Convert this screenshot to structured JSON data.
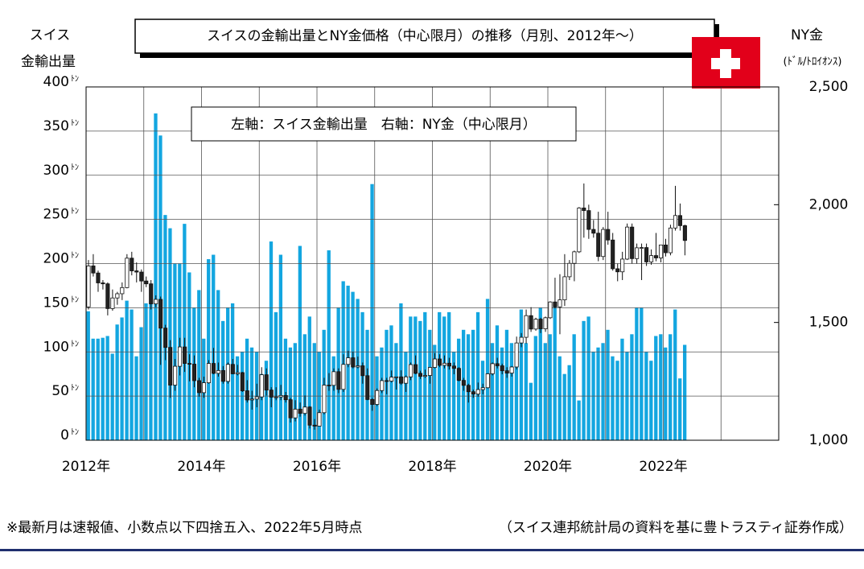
{
  "chart_data": {
    "type": "bar_candlestick",
    "title": "スイスの金輸出量とNY金価格（中心限月）の推移（月別、2012年～）",
    "y_label": [
      "スイス",
      "金輸出量"
    ],
    "y2_label": [
      "NY金",
      "(ﾄﾞﾙ/ﾄﾛｲｵﾝｽ)"
    ],
    "y_tick_suffix": "ﾄﾝ",
    "annotation": "左軸：スイス金輸出量　右軸：NY金（中心限月）",
    "footnote": "※最新月は速報値、小数点以下四捨五入、2022年5月時点",
    "source": "（スイス連邦統計局の資料を基に豊トラスティ証券作成）",
    "xlim": [
      2012,
      2024
    ],
    "xticks": [
      {
        "value": 2012,
        "label": "2012年"
      },
      {
        "value": 2014,
        "label": "2014年"
      },
      {
        "value": 2016,
        "label": "2016年"
      },
      {
        "value": 2018,
        "label": "2018年"
      },
      {
        "value": 2020,
        "label": "2020年"
      },
      {
        "value": 2022,
        "label": "2022年"
      }
    ],
    "x_minor_grid": [
      2013,
      2015,
      2017,
      2019,
      2021,
      2023,
      2024
    ],
    "ylim": [
      0,
      400
    ],
    "yticks": [
      0,
      50,
      100,
      150,
      200,
      250,
      300,
      350,
      400
    ],
    "y2lim": [
      1000,
      2500
    ],
    "y2ticks": [
      {
        "value": 1000,
        "label": "1,000"
      },
      {
        "value": 1500,
        "label": "1,500"
      },
      {
        "value": 2000,
        "label": "2,000"
      },
      {
        "value": 2500,
        "label": "2,500"
      }
    ],
    "grid": true,
    "x": [
      2012,
      2012.083,
      2012.167,
      2012.25,
      2012.333,
      2012.417,
      2012.5,
      2012.583,
      2012.667,
      2012.75,
      2012.833,
      2012.917,
      2013,
      2013.083,
      2013.167,
      2013.25,
      2013.333,
      2013.417,
      2013.5,
      2013.583,
      2013.667,
      2013.75,
      2013.833,
      2013.917,
      2014,
      2014.083,
      2014.167,
      2014.25,
      2014.333,
      2014.417,
      2014.5,
      2014.583,
      2014.667,
      2014.75,
      2014.833,
      2014.917,
      2015,
      2015.083,
      2015.167,
      2015.25,
      2015.333,
      2015.417,
      2015.5,
      2015.583,
      2015.667,
      2015.75,
      2015.833,
      2015.917,
      2016,
      2016.083,
      2016.167,
      2016.25,
      2016.333,
      2016.417,
      2016.5,
      2016.583,
      2016.667,
      2016.75,
      2016.833,
      2016.917,
      2017,
      2017.083,
      2017.167,
      2017.25,
      2017.333,
      2017.417,
      2017.5,
      2017.583,
      2017.667,
      2017.75,
      2017.833,
      2017.917,
      2018,
      2018.083,
      2018.167,
      2018.25,
      2018.333,
      2018.417,
      2018.5,
      2018.583,
      2018.667,
      2018.75,
      2018.833,
      2018.917,
      2019,
      2019.083,
      2019.167,
      2019.25,
      2019.333,
      2019.417,
      2019.5,
      2019.583,
      2019.667,
      2019.75,
      2019.833,
      2019.917,
      2020,
      2020.083,
      2020.167,
      2020.25,
      2020.333,
      2020.417,
      2020.5,
      2020.583,
      2020.667,
      2020.75,
      2020.833,
      2020.917,
      2021,
      2021.083,
      2021.167,
      2021.25,
      2021.333,
      2021.417,
      2021.5,
      2021.583,
      2021.667,
      2021.75,
      2021.833,
      2021.917,
      2022,
      2022.083,
      2022.167,
      2022.25,
      2022.333
    ],
    "series": [
      {
        "type": "bar",
        "axis": "y",
        "color": "#13a6e0",
        "values": [
          146,
          115,
          115,
          116,
          118,
          98,
          131,
          139,
          158,
          148,
          95,
          128,
          155,
          155,
          370,
          345,
          255,
          240,
          200,
          200,
          245,
          190,
          150,
          170,
          115,
          205,
          210,
          170,
          135,
          150,
          155,
          95,
          100,
          115,
          105,
          100,
          75,
          90,
          225,
          145,
          210,
          115,
          105,
          110,
          220,
          120,
          140,
          110,
          100,
          125,
          215,
          95,
          150,
          180,
          175,
          168,
          160,
          145,
          125,
          290,
          95,
          105,
          125,
          130,
          110,
          155,
          100,
          140,
          140,
          135,
          145,
          125,
          108,
          145,
          140,
          145,
          100,
          115,
          125,
          120,
          125,
          145,
          90,
          160,
          110,
          130,
          105,
          125,
          110,
          100,
          148,
          110,
          65,
          118,
          150,
          110,
          120,
          155,
          95,
          75,
          85,
          120,
          45,
          135,
          140,
          100,
          105,
          110,
          125,
          95,
          90,
          115,
          100,
          120,
          150,
          150,
          100,
          90,
          118,
          120,
          105,
          120,
          148,
          70,
          108
        ]
      },
      {
        "type": "candlestick",
        "axis": "y2",
        "up_color": "#ffffff",
        "down_color": "#222222",
        "edge_color": "#111111",
        "open": [
          1566,
          1740,
          1710,
          1668,
          1664,
          1559,
          1604,
          1622,
          1648,
          1773,
          1719,
          1714,
          1676,
          1664,
          1579,
          1598,
          1476,
          1394,
          1234,
          1314,
          1396,
          1326,
          1323,
          1253,
          1202,
          1244,
          1326,
          1284,
          1296,
          1250,
          1322,
          1282,
          1287,
          1210,
          1171,
          1175,
          1184,
          1278,
          1213,
          1183,
          1184,
          1190,
          1172,
          1095,
          1132,
          1114,
          1141,
          1064,
          1060,
          1117,
          1234,
          1233,
          1291,
          1216,
          1322,
          1350,
          1311,
          1316,
          1274,
          1173,
          1152,
          1211,
          1253,
          1251,
          1268,
          1269,
          1242,
          1269,
          1321,
          1284,
          1271,
          1275,
          1309,
          1345,
          1318,
          1327,
          1315,
          1305,
          1254,
          1233,
          1206,
          1196,
          1215,
          1223,
          1282,
          1325,
          1316,
          1295,
          1285,
          1311,
          1413,
          1437,
          1529,
          1472,
          1514,
          1473,
          1520,
          1587,
          1566,
          1596,
          1694,
          1751,
          1800,
          1986,
          1975,
          1895,
          1879,
          1780,
          1895,
          1850,
          1728,
          1715,
          1769,
          1905,
          1771,
          1817,
          1818,
          1757,
          1784,
          1774,
          1829,
          1796,
          1901,
          1954,
          1911
        ],
        "high": [
          1765,
          1790,
          1720,
          1680,
          1670,
          1640,
          1630,
          1670,
          1790,
          1800,
          1755,
          1725,
          1695,
          1680,
          1615,
          1610,
          1490,
          1425,
          1345,
          1435,
          1435,
          1365,
          1360,
          1265,
          1270,
          1340,
          1392,
          1330,
          1315,
          1330,
          1345,
          1320,
          1290,
          1255,
          1210,
          1240,
          1310,
          1305,
          1225,
          1225,
          1235,
          1205,
          1180,
          1170,
          1160,
          1190,
          1145,
          1090,
          1130,
          1265,
          1285,
          1305,
          1305,
          1365,
          1380,
          1375,
          1355,
          1330,
          1305,
          1180,
          1220,
          1265,
          1265,
          1296,
          1270,
          1297,
          1275,
          1330,
          1360,
          1295,
          1300,
          1310,
          1370,
          1365,
          1360,
          1350,
          1330,
          1310,
          1265,
          1240,
          1215,
          1245,
          1240,
          1285,
          1330,
          1350,
          1325,
          1310,
          1315,
          1440,
          1455,
          1555,
          1565,
          1520,
          1520,
          1525,
          1590,
          1690,
          1705,
          1790,
          1765,
          1805,
          1990,
          2090,
          2000,
          1935,
          1970,
          1905,
          1970,
          1880,
          1750,
          1800,
          1920,
          1920,
          1835,
          1835,
          1835,
          1810,
          1880,
          1830,
          1855,
          1915,
          2080,
          2005,
          1915
        ],
        "low": [
          1555,
          1695,
          1630,
          1640,
          1530,
          1550,
          1575,
          1595,
          1645,
          1700,
          1670,
          1630,
          1650,
          1555,
          1565,
          1320,
          1340,
          1180,
          1210,
          1275,
          1290,
          1250,
          1225,
          1185,
          1180,
          1240,
          1280,
          1270,
          1240,
          1240,
          1280,
          1275,
          1205,
          1160,
          1130,
          1140,
          1170,
          1190,
          1140,
          1170,
          1170,
          1160,
          1075,
          1080,
          1100,
          1105,
          1050,
          1045,
          1060,
          1110,
          1210,
          1210,
          1200,
          1205,
          1310,
          1305,
          1305,
          1240,
          1170,
          1125,
          1145,
          1200,
          1195,
          1245,
          1215,
          1235,
          1205,
          1255,
          1280,
          1260,
          1265,
          1240,
          1305,
          1310,
          1305,
          1300,
          1280,
          1250,
          1210,
          1160,
          1180,
          1185,
          1195,
          1220,
          1275,
          1305,
          1280,
          1265,
          1270,
          1300,
          1395,
          1410,
          1460,
          1465,
          1455,
          1460,
          1515,
          1560,
          1450,
          1570,
          1680,
          1675,
          1795,
          1860,
          1855,
          1860,
          1760,
          1765,
          1830,
          1720,
          1675,
          1680,
          1765,
          1750,
          1750,
          1680,
          1740,
          1745,
          1760,
          1755,
          1780,
          1785,
          1890,
          1890,
          1785
        ],
        "close": [
          1740,
          1710,
          1668,
          1664,
          1559,
          1604,
          1622,
          1648,
          1773,
          1719,
          1714,
          1676,
          1664,
          1579,
          1598,
          1476,
          1394,
          1234,
          1314,
          1396,
          1326,
          1323,
          1253,
          1202,
          1244,
          1326,
          1284,
          1296,
          1250,
          1322,
          1282,
          1287,
          1210,
          1171,
          1175,
          1184,
          1278,
          1213,
          1183,
          1184,
          1190,
          1172,
          1095,
          1132,
          1114,
          1141,
          1064,
          1060,
          1117,
          1234,
          1233,
          1291,
          1216,
          1322,
          1350,
          1311,
          1316,
          1274,
          1173,
          1152,
          1211,
          1253,
          1251,
          1268,
          1269,
          1242,
          1269,
          1321,
          1284,
          1271,
          1275,
          1309,
          1345,
          1318,
          1327,
          1315,
          1305,
          1254,
          1233,
          1206,
          1196,
          1215,
          1223,
          1282,
          1325,
          1316,
          1295,
          1285,
          1311,
          1413,
          1437,
          1529,
          1472,
          1514,
          1473,
          1520,
          1587,
          1566,
          1596,
          1694,
          1751,
          1800,
          1986,
          1975,
          1895,
          1879,
          1780,
          1895,
          1850,
          1728,
          1715,
          1769,
          1905,
          1771,
          1817,
          1818,
          1757,
          1784,
          1774,
          1829,
          1796,
          1901,
          1954,
          1911,
          1848
        ]
      }
    ]
  }
}
